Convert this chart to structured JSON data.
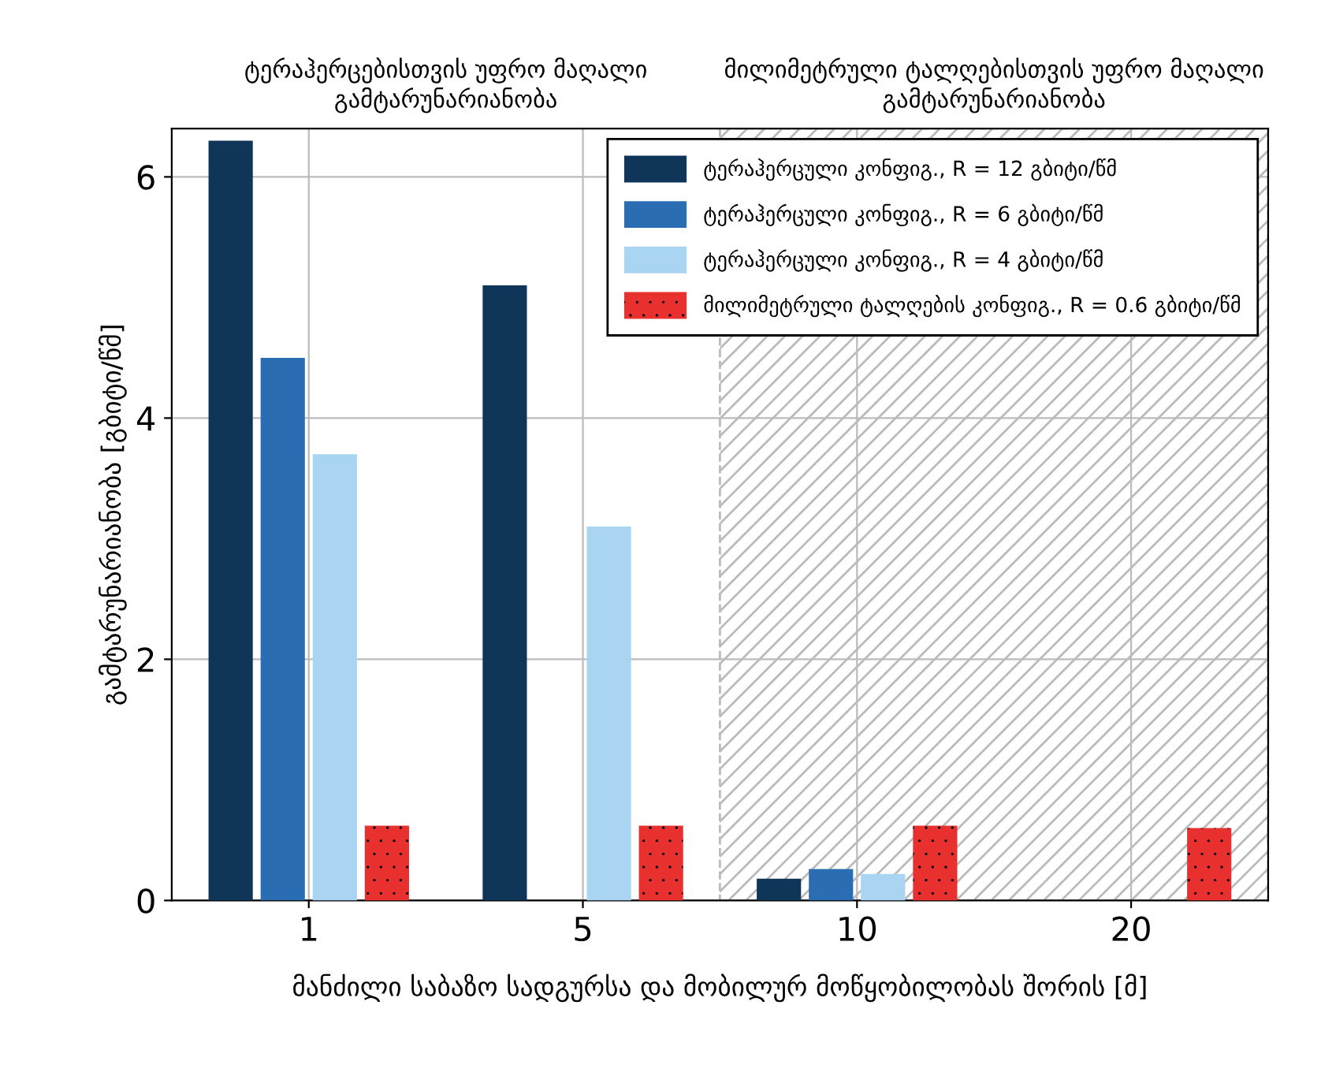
{
  "chart_data": {
    "type": "bar",
    "xlabel": "მანძილი საბაზო სადგურსა და მობილურ მოწყობილობას შორის [მ]",
    "ylabel": "გამტარუნარიანობა [გბიტი/წმ]",
    "categories": [
      "1",
      "5",
      "10",
      "20"
    ],
    "series": [
      {
        "name": "ტერაჰერცული კონფიგ., R = 12 გბიტი/წმ",
        "color": "#0f3558",
        "values": [
          6.3,
          5.1,
          0.18,
          null
        ]
      },
      {
        "name": "ტერაჰერცული კონფიგ., R = 6 გბიტი/წმ",
        "color": "#2a6db3",
        "values": [
          4.5,
          null,
          0.26,
          null
        ]
      },
      {
        "name": "ტერაჰერცული კონფიგ., R = 4 გბიტი/წმ",
        "color": "#a9d5f2",
        "values": [
          3.7,
          3.1,
          0.22,
          null
        ]
      },
      {
        "name": "მილიმეტრული ტალღების კონფიგ., R = 0.6 გბიტი/წმ",
        "color": "#e8312f",
        "values": [
          0.62,
          0.62,
          0.62,
          0.6
        ]
      }
    ],
    "ylim": [
      0,
      6.4
    ],
    "yticks": [
      0,
      2,
      4,
      6
    ],
    "grid": true,
    "legend": "top right",
    "bands": [
      {
        "axis": "x",
        "from": "10",
        "to": "20",
        "label": "მილიმეტრული ტალღებისთვის უფრო მაღალი გამტარუნარიანობა"
      }
    ],
    "annotations": [
      "ტერაჰერცებისთვის უფრო მაღალი გამტარუნარიანობა"
    ]
  }
}
